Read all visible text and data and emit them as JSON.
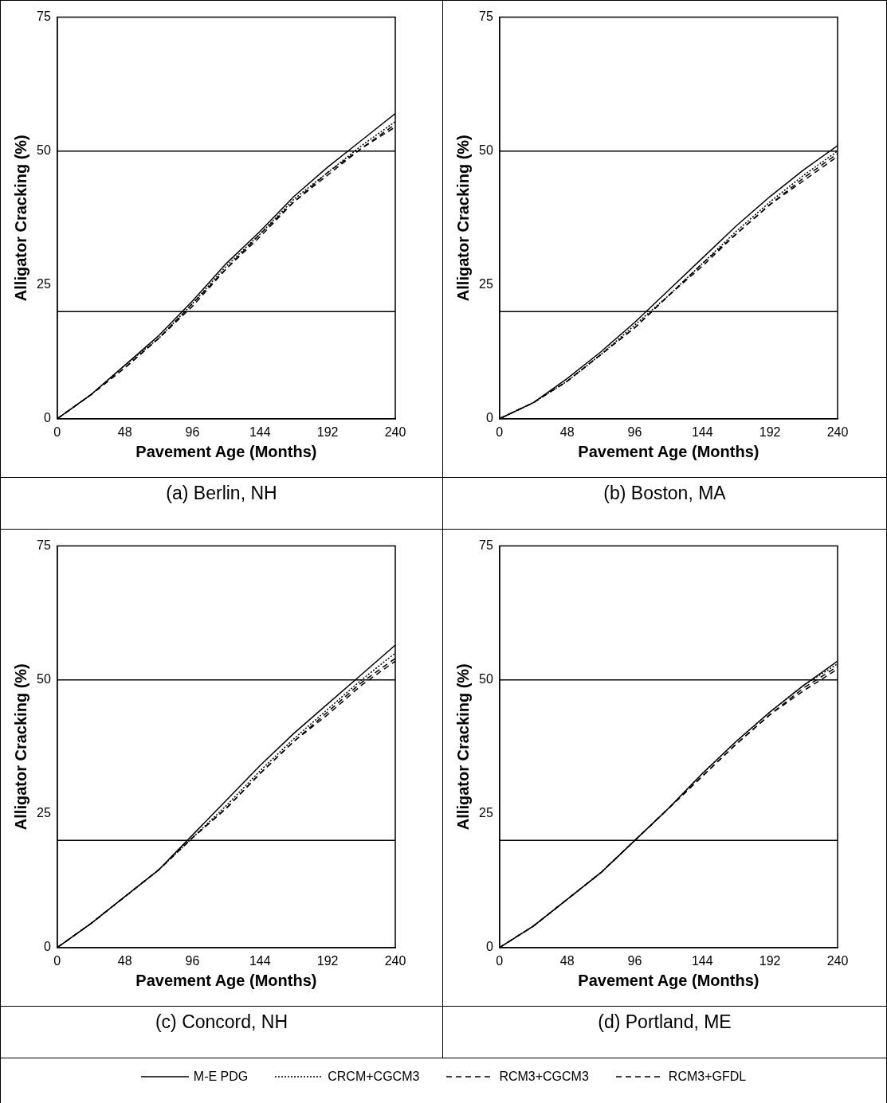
{
  "chart_data": [
    {
      "type": "line",
      "title": "(a)  Berlin, NH",
      "xlabel": "Pavement Age (Months)",
      "ylabel": "Alligator Cracking (%)",
      "x": [
        0,
        24,
        48,
        72,
        96,
        120,
        144,
        168,
        192,
        216,
        240
      ],
      "xlim": [
        0,
        240
      ],
      "xticks": [
        0,
        48,
        96,
        144,
        192,
        240
      ],
      "ylim": [
        0,
        75
      ],
      "yticks": [
        0,
        25,
        50,
        75
      ],
      "grid": false,
      "legend": "bottom",
      "ref_lines": [
        {
          "axis": "y",
          "value": 20,
          "color": "#000000"
        },
        {
          "axis": "y",
          "value": 50,
          "color": "#000000"
        }
      ],
      "series": [
        {
          "name": "M-E PDG",
          "color": "#000000",
          "line_style": "solid",
          "values": [
            0,
            4.5,
            10,
            15.5,
            22,
            29,
            35,
            41.5,
            47,
            52,
            57
          ]
        },
        {
          "name": "CRCM+CGCM3",
          "color": "#000000",
          "line_style": "dotted",
          "values": [
            0,
            4.5,
            10,
            15,
            21.5,
            28.5,
            34.5,
            41,
            46,
            51,
            55.5
          ]
        },
        {
          "name": "RCM3+CGCM3",
          "color": "#000000",
          "line_style": "dashed",
          "values": [
            0,
            4.5,
            9.5,
            15,
            21.5,
            28,
            34,
            40.5,
            45.5,
            50.5,
            55
          ]
        },
        {
          "name": "RCM3+GFDL",
          "color": "#000000",
          "line_style": "dashed",
          "values": [
            0,
            4.5,
            9.5,
            15,
            21,
            28,
            34.5,
            40.5,
            46,
            50.5,
            54.5
          ]
        }
      ]
    },
    {
      "type": "line",
      "title": "(b)  Boston, MA",
      "xlabel": "Pavement Age (Months)",
      "ylabel": "Alligator Cracking (%)",
      "x": [
        0,
        24,
        48,
        72,
        96,
        120,
        144,
        168,
        192,
        216,
        240
      ],
      "xlim": [
        0,
        240
      ],
      "xticks": [
        0,
        48,
        96,
        144,
        192,
        240
      ],
      "ylim": [
        0,
        75
      ],
      "yticks": [
        0,
        25,
        50,
        75
      ],
      "grid": false,
      "ref_lines": [
        {
          "axis": "y",
          "value": 20,
          "color": "#000000"
        },
        {
          "axis": "y",
          "value": 50,
          "color": "#000000"
        }
      ],
      "series": [
        {
          "color": "#000000",
          "line_style": "solid",
          "values": [
            0,
            3,
            7.5,
            12.5,
            18,
            24,
            30,
            36,
            41.5,
            46.5,
            51
          ]
        },
        {
          "color": "#000000",
          "line_style": "dotted",
          "values": [
            0,
            3,
            7,
            12,
            17.5,
            23,
            29,
            35,
            40.5,
            45.5,
            50
          ]
        },
        {
          "color": "#000000",
          "line_style": "dashed",
          "values": [
            0,
            3,
            7,
            12,
            17,
            23,
            29,
            34.5,
            40,
            45,
            49.5
          ]
        },
        {
          "color": "#000000",
          "line_style": "dashed",
          "values": [
            0,
            3,
            7,
            12,
            17,
            23,
            28.5,
            34.5,
            40,
            44.5,
            49
          ]
        }
      ]
    },
    {
      "type": "line",
      "title": "(c)  Concord, NH",
      "xlabel": "Pavement Age (Months)",
      "ylabel": "Alligator Cracking (%)",
      "x": [
        0,
        24,
        48,
        72,
        96,
        120,
        144,
        168,
        192,
        216,
        240
      ],
      "xlim": [
        0,
        240
      ],
      "xticks": [
        0,
        48,
        96,
        144,
        192,
        240
      ],
      "ylim": [
        0,
        75
      ],
      "yticks": [
        0,
        25,
        50,
        75
      ],
      "grid": false,
      "ref_lines": [
        {
          "axis": "y",
          "value": 20,
          "color": "#000000"
        },
        {
          "axis": "y",
          "value": 50,
          "color": "#000000"
        }
      ],
      "series": [
        {
          "color": "#000000",
          "line_style": "solid",
          "values": [
            0,
            4.5,
            9.5,
            14.5,
            21,
            27.5,
            34,
            40,
            45.5,
            51,
            56.5
          ]
        },
        {
          "color": "#000000",
          "line_style": "dotted",
          "values": [
            0,
            4.5,
            9.5,
            14.5,
            20.5,
            26.5,
            33,
            39,
            44.5,
            50,
            55
          ]
        },
        {
          "color": "#000000",
          "line_style": "dashed",
          "values": [
            0,
            4.5,
            9.5,
            14.5,
            20.5,
            26,
            32.5,
            38.5,
            44,
            49.5,
            54
          ]
        },
        {
          "color": "#000000",
          "line_style": "dashed",
          "values": [
            0,
            4.5,
            9.5,
            14.5,
            20.5,
            26,
            32.5,
            38.5,
            43.5,
            49,
            53.5
          ]
        }
      ]
    },
    {
      "type": "line",
      "title": "(d)  Portland, ME",
      "xlabel": "Pavement Age (Months)",
      "ylabel": "Alligator Cracking (%)",
      "x": [
        0,
        24,
        48,
        72,
        96,
        120,
        144,
        168,
        192,
        216,
        240
      ],
      "xlim": [
        0,
        240
      ],
      "xticks": [
        0,
        48,
        96,
        144,
        192,
        240
      ],
      "ylim": [
        0,
        75
      ],
      "yticks": [
        0,
        25,
        50,
        75
      ],
      "grid": false,
      "ref_lines": [
        {
          "axis": "y",
          "value": 20,
          "color": "#000000"
        },
        {
          "axis": "y",
          "value": 50,
          "color": "#000000"
        }
      ],
      "series": [
        {
          "color": "#000000",
          "line_style": "solid",
          "values": [
            0,
            4,
            9,
            14,
            20,
            26,
            32.5,
            38.5,
            44,
            49,
            53.5
          ]
        },
        {
          "color": "#000000",
          "line_style": "dotted",
          "values": [
            0,
            4,
            9,
            14,
            20,
            26,
            32.5,
            38.5,
            44,
            49,
            53
          ]
        },
        {
          "color": "#000000",
          "line_style": "dashed",
          "values": [
            0,
            4,
            9,
            14,
            20,
            26,
            32,
            38,
            43.5,
            48.5,
            52.5
          ]
        },
        {
          "color": "#000000",
          "line_style": "dashed",
          "values": [
            0,
            4,
            9,
            14,
            20,
            26,
            32,
            38,
            43.5,
            48,
            52
          ]
        }
      ]
    }
  ]
}
